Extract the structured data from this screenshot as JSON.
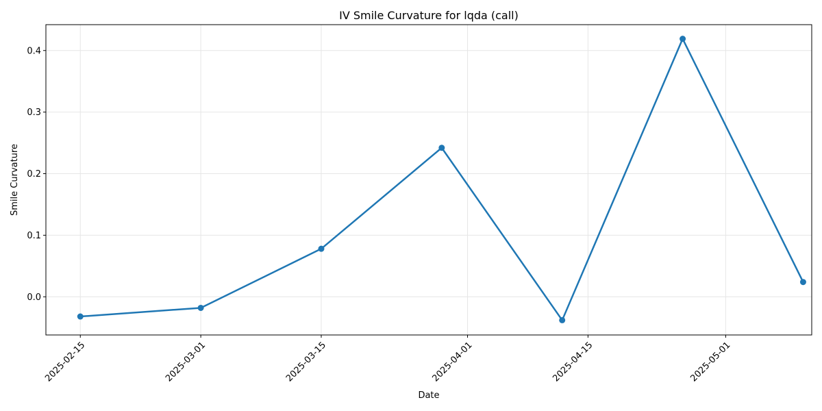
{
  "chart_data": {
    "type": "line",
    "title": "IV Smile Curvature for lqda (call)",
    "xlabel": "Date",
    "ylabel": "Smile Curvature",
    "x_axis_type": "date",
    "xlim": [
      "2025-02-11",
      "2025-05-11"
    ],
    "ylim": [
      -0.062,
      0.442
    ],
    "x_ticks": [
      "2025-02-15",
      "2025-03-01",
      "2025-03-15",
      "2025-04-01",
      "2025-04-15",
      "2025-05-01"
    ],
    "y_ticks": [
      0.0,
      0.1,
      0.2,
      0.3,
      0.4
    ],
    "y_tick_labels": [
      "0.0",
      "0.1",
      "0.2",
      "0.3",
      "0.4"
    ],
    "grid": true,
    "legend": "none",
    "series": [
      {
        "color": "#1f77b4",
        "marker": "circle",
        "points": [
          {
            "x": "2025-02-15",
            "y": -0.032
          },
          {
            "x": "2025-03-01",
            "y": -0.018
          },
          {
            "x": "2025-03-15",
            "y": 0.078
          },
          {
            "x": "2025-03-29",
            "y": 0.242
          },
          {
            "x": "2025-04-12",
            "y": -0.038
          },
          {
            "x": "2025-04-26",
            "y": 0.419
          },
          {
            "x": "2025-05-10",
            "y": 0.024
          }
        ]
      }
    ]
  }
}
